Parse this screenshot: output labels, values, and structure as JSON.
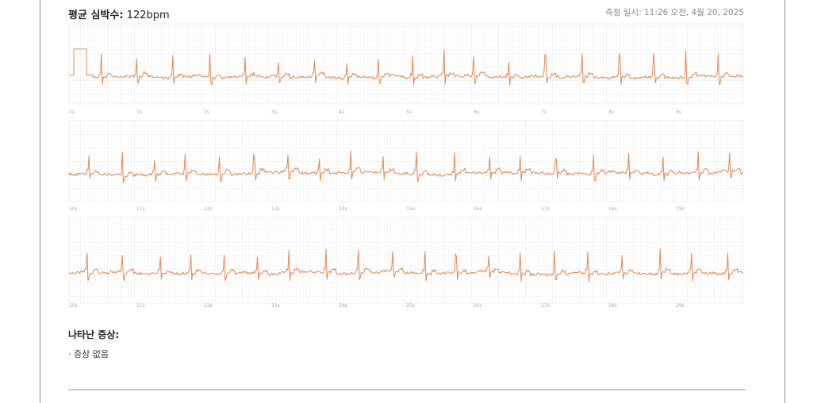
{
  "header": {
    "avg_hr_label": "평균 심박수:",
    "avg_hr_value": "122bpm",
    "measured_at": "측정 일시: 11:26 오전, 4월 20, 2025"
  },
  "strips": [
    {
      "time_labels": [
        "0s",
        "1s",
        "2s",
        "3s",
        "4s",
        "5s",
        "6s",
        "7s",
        "8s",
        "9s"
      ]
    },
    {
      "time_labels": [
        "10s",
        "11s",
        "12s",
        "13s",
        "14s",
        "15s",
        "16s",
        "17s",
        "18s",
        "19s"
      ]
    },
    {
      "time_labels": [
        "20s",
        "21s",
        "22s",
        "23s",
        "24s",
        "25s",
        "26s",
        "27s",
        "28s",
        "29s"
      ]
    }
  ],
  "symptoms": {
    "title": "나타난 증상:",
    "items": [
      "· 증상 없음"
    ]
  }
}
